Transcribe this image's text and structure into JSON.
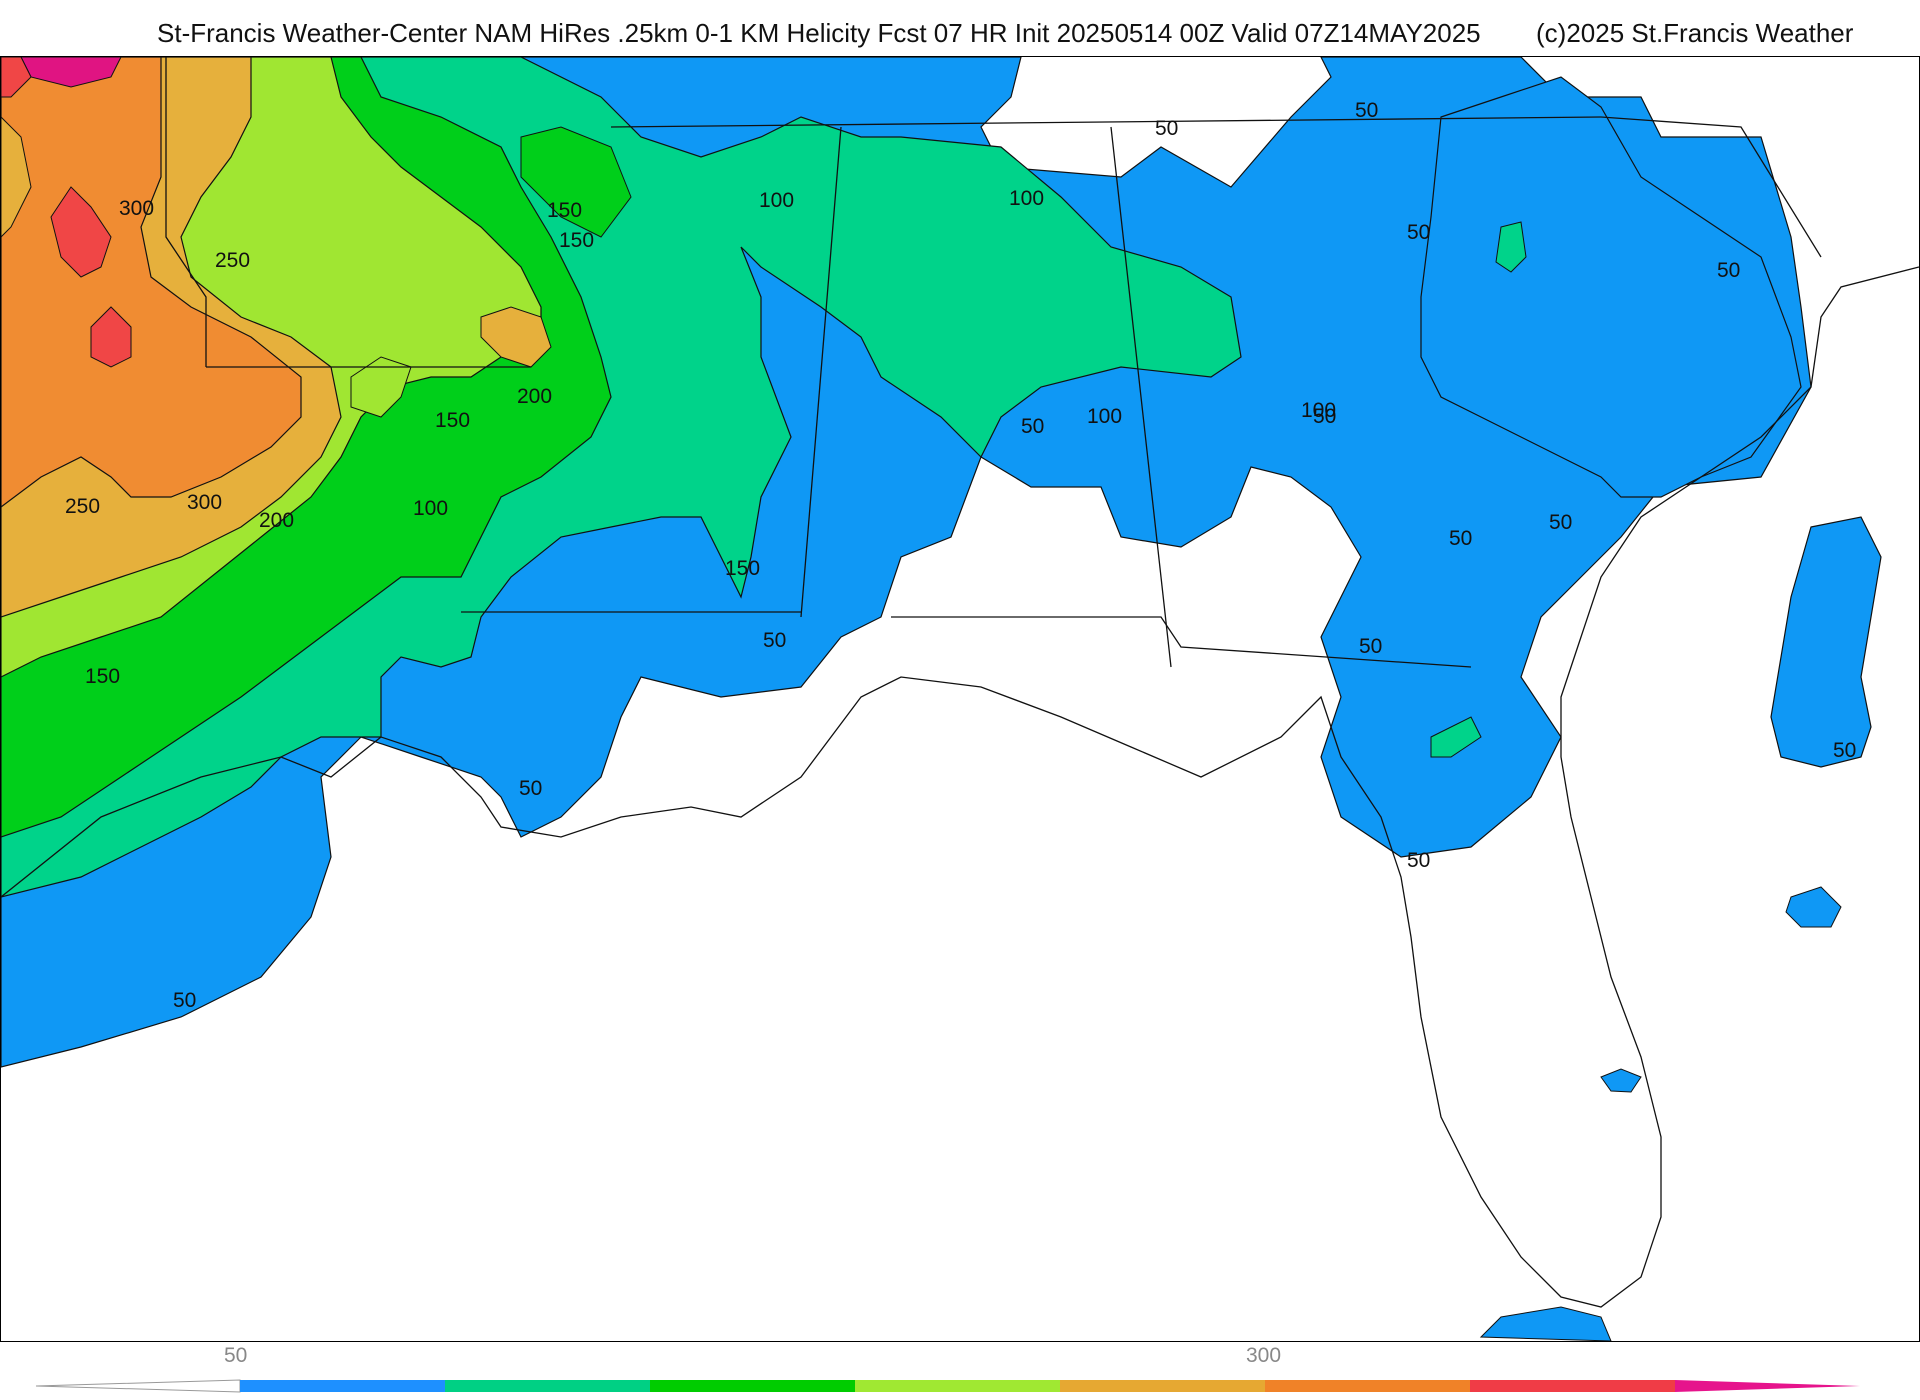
{
  "header": {
    "title": "St-Francis Weather-Center NAM HiRes .25km 0-1 KM Helicity Fcst 07 HR Init 20250514 00Z  Valid 07Z14MAY2025",
    "copyright": "(c)2025 St.Francis Weather"
  },
  "map": {
    "region": "Southeastern United States and Gulf of Mexico",
    "contour_labels": [
      "300",
      "250",
      "150",
      "150",
      "150",
      "200",
      "150",
      "100",
      "100",
      "100",
      "100",
      "50",
      "50",
      "50",
      "50",
      "50",
      "50",
      "50",
      "50",
      "50",
      "50",
      "50",
      "50",
      "50",
      "250",
      "300",
      "200",
      "150",
      "100",
      "50"
    ]
  },
  "legend": {
    "tick_labels": [
      "50",
      "300"
    ],
    "colors": [
      "#1e90ff",
      "#00d084",
      "#00cc00",
      "#a0e832",
      "#e6a832",
      "#f08228",
      "#f03c46",
      "#e6148c"
    ],
    "arrow_color": "#ffffff"
  },
  "colors": {
    "c50": "#0f98f5",
    "c100": "#00d38a",
    "c150": "#00cf1a",
    "c200": "#a0e632",
    "c250": "#e6b03c",
    "c300": "#f08c32",
    "c350": "#f04646",
    "c400": "#e01482"
  }
}
